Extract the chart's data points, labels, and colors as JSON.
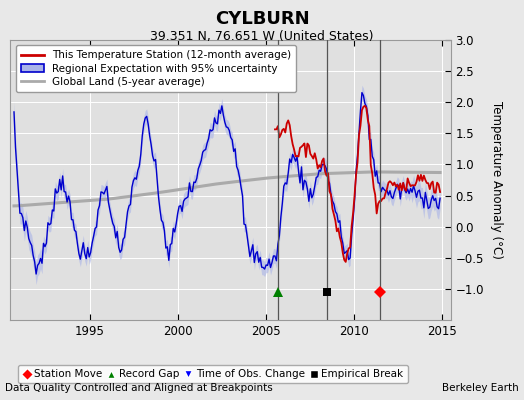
{
  "title": "CYLBURN",
  "subtitle": "39.351 N, 76.651 W (United States)",
  "ylabel": "Temperature Anomaly (°C)",
  "xlabel_note": "Data Quality Controlled and Aligned at Breakpoints",
  "credit": "Berkeley Earth",
  "xlim": [
    1990.5,
    2015.5
  ],
  "ylim": [
    -1.5,
    3.0
  ],
  "yticks": [
    -1.0,
    -0.5,
    0.0,
    0.5,
    1.0,
    1.5,
    2.0,
    2.5,
    3.0
  ],
  "xticks": [
    1995,
    2000,
    2005,
    2010,
    2015
  ],
  "background_color": "#e8e8e8",
  "plot_bg_color": "#e0e0e0",
  "grid_color": "#ffffff",
  "vertical_line_color": "#555555",
  "vertical_lines": [
    2005.67,
    2008.5,
    2011.5
  ],
  "marker_events": {
    "record_gap_x": 2005.67,
    "empirical_break_x": 2008.5,
    "station_move_x": 2011.5
  },
  "title_fontsize": 13,
  "subtitle_fontsize": 9,
  "legend_fontsize": 7.5,
  "tick_fontsize": 8.5,
  "note_fontsize": 7.5,
  "regional_color": "#0000cc",
  "band_color": "#aab4e8",
  "global_color": "#aaaaaa",
  "station_color": "#cc0000",
  "marker_y": -1.05
}
